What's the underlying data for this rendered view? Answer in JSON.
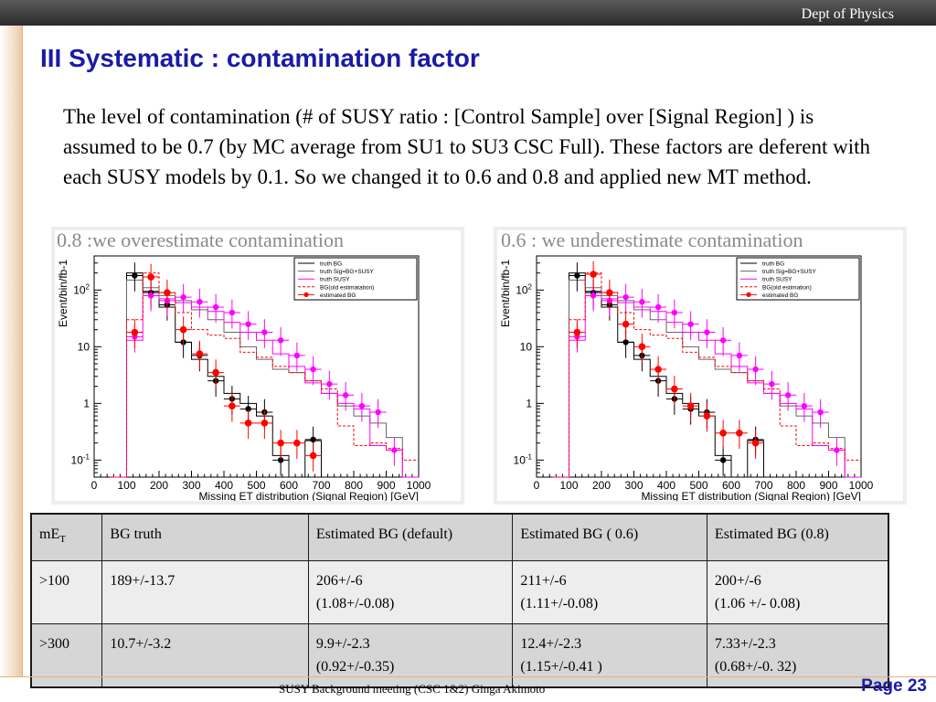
{
  "header": {
    "dept": "Dept of Physics"
  },
  "slide": {
    "title": "III Systematic : contamination factor",
    "paragraph": "The level of contamination (# of SUSY ratio : [Control Sample] over [Signal Region] ) is assumed to be 0.7 (by MC average from  SU1 to SU3 CSC Full). These factors are deferent with each SUSY models by 0.1. So we changed it to 0.6 and 0.8 and applied new MT method."
  },
  "colors": {
    "title": "#1a1aa8",
    "truth_bg": "#000000",
    "truth_sig_bg": "#666666",
    "truth_susy": "#ff00ff",
    "bg_old": "#ff0000",
    "estimated_bg": "#ff0000"
  },
  "chart_data": [
    {
      "type": "line",
      "panel_title": "0.8 :we overestimate contamination",
      "xlabel": "Missing  ET distribution (Signal Region) [GeV]",
      "ylabel": "Event/bin/fb-1",
      "xlim": [
        0,
        1000
      ],
      "ylim": [
        0.05,
        400
      ],
      "yscale": "log",
      "xticks": [
        "0",
        "100",
        "200",
        "300",
        "400",
        "500",
        "600",
        "700",
        "800",
        "900",
        "1000"
      ],
      "yticks": [
        {
          "value": 0.1,
          "base": "10",
          "exp": "-1"
        },
        {
          "value": 1,
          "base": "1",
          "exp": ""
        },
        {
          "value": 10,
          "base": "10",
          "exp": ""
        },
        {
          "value": 100,
          "base": "10",
          "exp": "2"
        }
      ],
      "legend_position": "top-right",
      "x_edges": [
        50,
        100,
        150,
        200,
        250,
        300,
        350,
        400,
        450,
        500,
        550,
        600,
        650,
        700,
        750,
        800,
        850,
        900,
        950,
        1000
      ],
      "series": [
        {
          "name": "truth BG",
          "style": "step",
          "values": [
            0.05,
            200,
            95,
            50,
            12,
            6,
            3,
            1.5,
            1,
            0.6,
            0.12,
            0.05,
            0.22,
            0.05,
            0.05,
            0.05,
            0.05,
            0.05,
            0.05
          ]
        },
        {
          "name": "truth Sig=BG+SUSY",
          "style": "step",
          "values": [
            0.05,
            150,
            110,
            80,
            65,
            45,
            30,
            18,
            10,
            6,
            4,
            3.5,
            2.5,
            1.5,
            0.9,
            0.6,
            0.45,
            0.25,
            0.05
          ]
        },
        {
          "name": "truth SUSY",
          "style": "step",
          "values": [
            0.05,
            13,
            80,
            70,
            60,
            50,
            42,
            27,
            18,
            13,
            7.5,
            4.5,
            2.3,
            1.5,
            1,
            0.8,
            0.18,
            0.15,
            0.05
          ]
        },
        {
          "name": "BG(old estimatation)",
          "style": "dashed-step",
          "values": [
            0.05,
            30,
            200,
            90,
            40,
            20,
            16,
            14,
            8,
            6.5,
            4.5,
            3.5,
            2.5,
            1.8,
            0.4,
            0.18,
            0.2,
            0.16,
            0.1
          ]
        },
        {
          "name": "estimated BG",
          "style": "markers",
          "values": [
            null,
            18,
            170,
            80,
            20,
            8,
            3.5,
            1,
            0.5,
            0.5,
            0.2,
            0.2,
            0.13,
            0.2,
            null,
            null,
            null,
            null,
            null
          ]
        }
      ],
      "points": [
        {
          "series": "truth BG",
          "x": [
            125,
            175,
            225,
            275,
            325,
            375,
            425,
            475,
            525,
            575,
            675
          ],
          "y": [
            180,
            90,
            55,
            12,
            7,
            2.5,
            1.2,
            0.8,
            0.7,
            0.1,
            0.23
          ]
        },
        {
          "series": "truth SUSY",
          "x": [
            125,
            175,
            225,
            275,
            325,
            375,
            425,
            475,
            525,
            575,
            625,
            675,
            725,
            775,
            825,
            875,
            925
          ],
          "y": [
            15,
            80,
            65,
            75,
            62,
            50,
            40,
            25,
            18,
            13,
            7,
            4,
            2.2,
            1.4,
            0.9,
            0.7,
            0.15
          ]
        },
        {
          "series": "estimated BG",
          "x": [
            125,
            175,
            225,
            275,
            325,
            375,
            425,
            475,
            525,
            575,
            625,
            675
          ],
          "y": [
            18,
            170,
            90,
            20,
            7.5,
            3.5,
            0.9,
            0.45,
            0.45,
            0.2,
            0.2,
            0.12
          ]
        }
      ]
    },
    {
      "type": "line",
      "panel_title": "0.6 : we underestimate contamination",
      "xlabel": "Missing  ET distribution (Signal Region) [GeV]",
      "ylabel": "Event/bin/fb-1",
      "xlim": [
        0,
        1000
      ],
      "ylim": [
        0.05,
        400
      ],
      "yscale": "log",
      "xticks": [
        "0",
        "100",
        "200",
        "300",
        "400",
        "500",
        "600",
        "700",
        "800",
        "900",
        "1000"
      ],
      "yticks": [
        {
          "value": 0.1,
          "base": "10",
          "exp": "-1"
        },
        {
          "value": 1,
          "base": "1",
          "exp": ""
        },
        {
          "value": 10,
          "base": "10",
          "exp": ""
        },
        {
          "value": 100,
          "base": "10",
          "exp": "2"
        }
      ],
      "legend_position": "top-right",
      "x_edges": [
        50,
        100,
        150,
        200,
        250,
        300,
        350,
        400,
        450,
        500,
        550,
        600,
        650,
        700,
        750,
        800,
        850,
        900,
        950,
        1000
      ],
      "series": [
        {
          "name": "truth BG",
          "style": "step",
          "values": [
            0.05,
            200,
            95,
            50,
            12,
            6,
            3,
            1.5,
            1,
            0.6,
            0.12,
            0.05,
            0.22,
            0.05,
            0.05,
            0.05,
            0.05,
            0.05,
            0.05
          ]
        },
        {
          "name": "truth Sig=BG+SUSY",
          "style": "step",
          "values": [
            0.05,
            150,
            110,
            80,
            65,
            45,
            30,
            18,
            10,
            6,
            4,
            3.5,
            2.5,
            1.5,
            0.9,
            0.6,
            0.45,
            0.25,
            0.05
          ]
        },
        {
          "name": "truth SUSY",
          "style": "step",
          "values": [
            0.05,
            13,
            80,
            70,
            60,
            50,
            42,
            27,
            18,
            13,
            7.5,
            4.5,
            2.3,
            1.5,
            1,
            0.8,
            0.18,
            0.15,
            0.05
          ]
        },
        {
          "name": "BG(old estimation)",
          "style": "dashed-step",
          "values": [
            0.05,
            30,
            200,
            90,
            40,
            20,
            16,
            14,
            8,
            6.5,
            4.5,
            3.5,
            2.5,
            1.8,
            0.4,
            0.18,
            0.2,
            0.16,
            0.1
          ]
        },
        {
          "name": "estimated BG",
          "style": "markers",
          "values": [
            null,
            18,
            190,
            90,
            25,
            10,
            4,
            1.8,
            0.9,
            0.6,
            0.3,
            0.3,
            0.2,
            0.13,
            null,
            null,
            null,
            null,
            null
          ]
        }
      ],
      "points": [
        {
          "series": "truth BG",
          "x": [
            125,
            175,
            225,
            275,
            325,
            375,
            425,
            475,
            525,
            575,
            675
          ],
          "y": [
            180,
            90,
            55,
            12,
            7,
            2.5,
            1.2,
            0.8,
            0.7,
            0.1,
            0.23
          ]
        },
        {
          "series": "truth SUSY",
          "x": [
            125,
            175,
            225,
            275,
            325,
            375,
            425,
            475,
            525,
            575,
            625,
            675,
            725,
            775,
            825,
            875,
            925
          ],
          "y": [
            15,
            80,
            65,
            75,
            62,
            50,
            40,
            25,
            18,
            13,
            7,
            4,
            2.2,
            1.4,
            0.9,
            0.7,
            0.15
          ]
        },
        {
          "series": "estimated BG",
          "x": [
            125,
            175,
            225,
            275,
            325,
            375,
            425,
            475,
            525,
            575,
            625,
            675
          ],
          "y": [
            18,
            190,
            90,
            25,
            10,
            4,
            1.8,
            0.9,
            0.6,
            0.3,
            0.3,
            0.2
          ]
        }
      ]
    }
  ],
  "table": {
    "header": {
      "col0": "mE",
      "col0_sub": "T",
      "col1": "BG truth",
      "col2": "Estimated BG (default)",
      "col3": "Estimated BG ( 0.6)",
      "col4": "Estimated BG (0.8)"
    },
    "rows": [
      {
        "cut": ">100",
        "truth": "189+/-13.7",
        "def_a": "206+/-6",
        "def_b": "(1.08+/-0.08)",
        "e06_a": "211+/-6",
        "e06_b": "(1.11+/-0.08)",
        "e08_a": "200+/-6",
        "e08_b": "(1.06 +/- 0.08)"
      },
      {
        "cut": ">300",
        "truth": "10.7+/-3.2",
        "def_a": "9.9+/-2.3",
        "def_b": "(0.92+/-0.35)",
        "e06_a": "12.4+/-2.3",
        "e06_b": "(1.15+/-0.41  )",
        "e08_a": "7.33+/-2.3",
        "e08_b": "(0.68+/-0. 32)"
      }
    ]
  },
  "footer": {
    "text": "SUSY Background meeting  (CSC 1&2) Ginga Akimoto",
    "page": "Page 23"
  }
}
